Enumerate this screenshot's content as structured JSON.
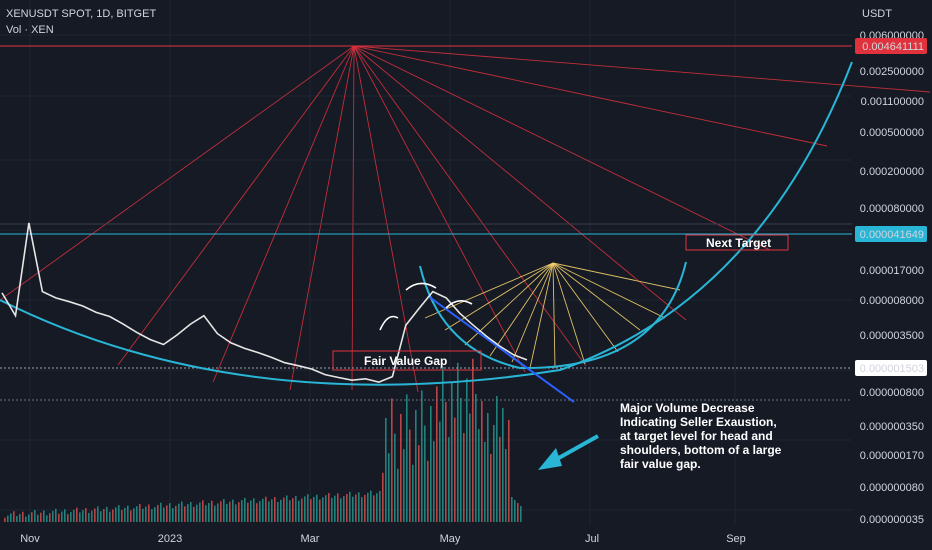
{
  "header": {
    "symbol_line": "XENUSDT SPOT, 1D, BITGET",
    "volume_line": "Vol · XEN"
  },
  "colors": {
    "background": "#161a25",
    "price_line": "#e6e6e6",
    "curve": "#29b6d6",
    "fan_red": "#e0323c",
    "fan_yellow": "#f5d36b",
    "volume_green": "#26a69a",
    "volume_red": "#ef5350"
  },
  "chart_data": {
    "type": "line",
    "title": "",
    "currency": "USDT",
    "y_scale": "log",
    "y_tick_labels": [
      "0.006000000",
      "0.002500000",
      "0.001100000",
      "0.000500000",
      "0.000200000",
      "0.000080000",
      "0.000017000",
      "0.000008000",
      "0.000003500",
      "0.000000800",
      "0.000000350",
      "0.000000170",
      "0.000000080",
      "0.000000035"
    ],
    "x_tick_labels": [
      "Nov",
      "2023",
      "Mar",
      "May",
      "Jul",
      "Sep"
    ],
    "price_tags": [
      {
        "value": "0.004641111",
        "color": "#e0323c"
      },
      {
        "value": "0.000041649",
        "color": "#29b6d6"
      },
      {
        "value": "0.000001503",
        "color": "#ffffff"
      }
    ],
    "series": [
      {
        "values": [
          8.2e-06,
          4.5e-06,
          5.2e-05,
          8.5e-06,
          7.2e-06,
          6.5e-06,
          5.8e-06,
          4.9e-06,
          4.4e-06,
          3.6e-06,
          2.9e-06,
          2.4e-06,
          2.1e-06,
          2.7e-06,
          3.6e-06,
          4.5e-06,
          2.8e-06,
          2.2e-06,
          1.9e-06,
          1.7e-06,
          1.5e-06,
          1.3e-06,
          1.2e-06,
          1.1e-06,
          9.5e-07,
          8.8e-07,
          8.2e-07,
          8.5e-07,
          7.8e-07,
          9e-07,
          3.5e-06,
          5.5e-06,
          8.5e-06,
          7.2e-06,
          4.8e-06,
          3.5e-06,
          2.6e-06,
          2e-06,
          1.6e-06,
          1.4e-06
        ]
      }
    ],
    "annotations": [
      "Fair Value Gap",
      "Next Target",
      "Major Volume Decrease Indicating Seller Exaustion, at target level for head and shoulders, bottom of a large fair value gap."
    ]
  }
}
